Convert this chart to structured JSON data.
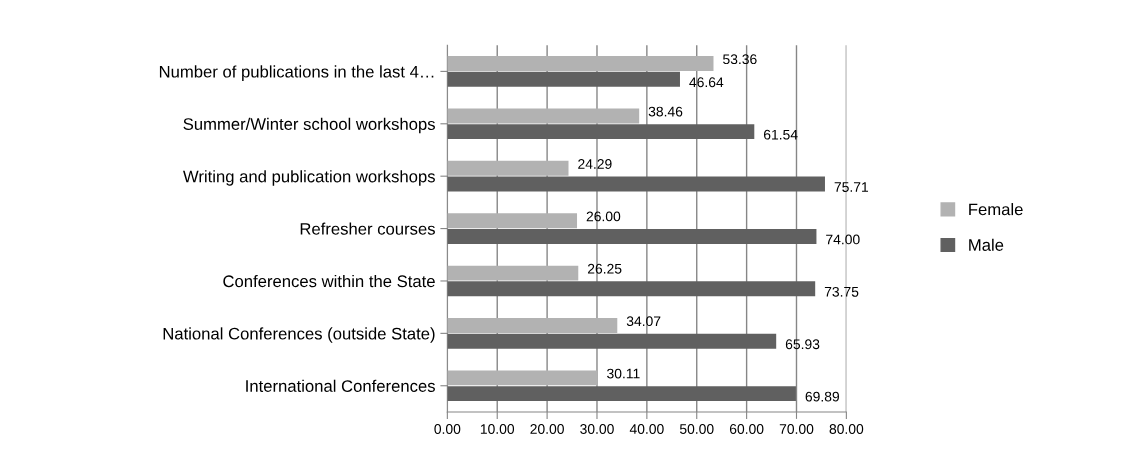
{
  "chart_data": {
    "type": "bar",
    "orientation": "horizontal",
    "categories": [
      "Number of publications in the last 4…",
      "Summer/Winter school workshops",
      "Writing and publication workshops",
      "Refresher courses",
      "Conferences within the State",
      "National Conferences (outside State)",
      "International Conferences"
    ],
    "series": [
      {
        "name": "Female",
        "color": "#b2b2b2",
        "values": [
          53.36,
          38.46,
          24.29,
          26.0,
          26.25,
          34.07,
          30.11
        ],
        "value_labels": [
          "53.36",
          "38.46",
          "24.29",
          "26.00",
          "26.25",
          "34.07",
          "30.11"
        ]
      },
      {
        "name": "Male",
        "color": "#606060",
        "values": [
          46.64,
          61.54,
          75.71,
          74.0,
          73.75,
          65.93,
          69.89
        ],
        "value_labels": [
          "46.64",
          "61.54",
          "75.71",
          "74.00",
          "73.75",
          "65.93",
          "69.89"
        ]
      }
    ],
    "xlim": [
      0,
      80
    ],
    "xticks": [
      {
        "value": 0,
        "label": "0.00"
      },
      {
        "value": 10,
        "label": "10.00"
      },
      {
        "value": 20,
        "label": "20.00"
      },
      {
        "value": 30,
        "label": "30.00"
      },
      {
        "value": 40,
        "label": "40.00"
      },
      {
        "value": 50,
        "label": "50.00"
      },
      {
        "value": 60,
        "label": "60.00"
      },
      {
        "value": 70,
        "label": "70.00"
      },
      {
        "value": 80,
        "label": "80.00"
      }
    ],
    "grid": "x",
    "legend": "right"
  }
}
